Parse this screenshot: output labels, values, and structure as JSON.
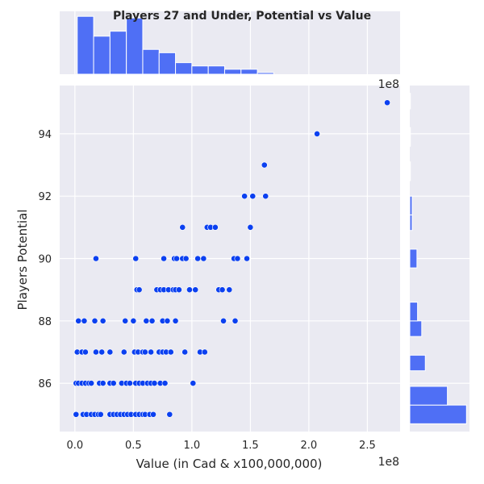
{
  "chart_data": {
    "type": "scatter",
    "title": "Players 27 and Under, Potential vs Value",
    "xlabel": "Value (in Cad & x100,000,000)",
    "ylabel": "Players Potential",
    "x_offset_label": "1e8",
    "x_ticks": [
      "0.0",
      "0.5",
      "1.0",
      "1.5",
      "2.0",
      "2.5"
    ],
    "y_ticks": [
      "86",
      "88",
      "90",
      "92",
      "94"
    ],
    "xlim": [
      -0.13,
      2.78
    ],
    "ylim": [
      84.45,
      95.55
    ],
    "grid": true,
    "point_color": "#0b40f0",
    "bar_color": "#4f6ff5",
    "background_color": "#eaeaf2",
    "points": [
      [
        2.67,
        95
      ],
      [
        2.07,
        94
      ],
      [
        1.62,
        93
      ],
      [
        1.45,
        92
      ],
      [
        1.52,
        92
      ],
      [
        1.63,
        92
      ],
      [
        0.92,
        91
      ],
      [
        1.13,
        91
      ],
      [
        1.16,
        91
      ],
      [
        1.2,
        91
      ],
      [
        1.5,
        91
      ],
      [
        0.18,
        90
      ],
      [
        0.52,
        90
      ],
      [
        0.76,
        90
      ],
      [
        0.85,
        90
      ],
      [
        0.87,
        90
      ],
      [
        0.92,
        90
      ],
      [
        0.95,
        90
      ],
      [
        1.05,
        90
      ],
      [
        1.1,
        90
      ],
      [
        1.36,
        90
      ],
      [
        1.39,
        90
      ],
      [
        1.47,
        90
      ],
      [
        0.53,
        89
      ],
      [
        0.55,
        89
      ],
      [
        0.7,
        89
      ],
      [
        0.73,
        89
      ],
      [
        0.76,
        89
      ],
      [
        0.8,
        89
      ],
      [
        0.84,
        89
      ],
      [
        0.86,
        89
      ],
      [
        0.89,
        89
      ],
      [
        0.98,
        89
      ],
      [
        1.03,
        89
      ],
      [
        1.23,
        89
      ],
      [
        1.26,
        89
      ],
      [
        1.32,
        89
      ],
      [
        0.03,
        88
      ],
      [
        0.08,
        88
      ],
      [
        0.17,
        88
      ],
      [
        0.24,
        88
      ],
      [
        0.43,
        88
      ],
      [
        0.5,
        88
      ],
      [
        0.61,
        88
      ],
      [
        0.66,
        88
      ],
      [
        0.75,
        88
      ],
      [
        0.79,
        88
      ],
      [
        0.86,
        88
      ],
      [
        1.27,
        88
      ],
      [
        1.37,
        88
      ],
      [
        0.02,
        87
      ],
      [
        0.06,
        87
      ],
      [
        0.09,
        87
      ],
      [
        0.18,
        87
      ],
      [
        0.23,
        87
      ],
      [
        0.3,
        87
      ],
      [
        0.42,
        87
      ],
      [
        0.51,
        87
      ],
      [
        0.54,
        87
      ],
      [
        0.58,
        87
      ],
      [
        0.6,
        87
      ],
      [
        0.65,
        87
      ],
      [
        0.72,
        87
      ],
      [
        0.75,
        87
      ],
      [
        0.78,
        87
      ],
      [
        0.82,
        87
      ],
      [
        0.94,
        87
      ],
      [
        1.07,
        87
      ],
      [
        1.11,
        87
      ],
      [
        0.01,
        86
      ],
      [
        0.03,
        86
      ],
      [
        0.06,
        86
      ],
      [
        0.09,
        86
      ],
      [
        0.12,
        86
      ],
      [
        0.14,
        86
      ],
      [
        0.21,
        86
      ],
      [
        0.24,
        86
      ],
      [
        0.3,
        86
      ],
      [
        0.33,
        86
      ],
      [
        0.4,
        86
      ],
      [
        0.44,
        86
      ],
      [
        0.47,
        86
      ],
      [
        0.52,
        86
      ],
      [
        0.55,
        86
      ],
      [
        0.58,
        86
      ],
      [
        0.62,
        86
      ],
      [
        0.65,
        86
      ],
      [
        0.68,
        86
      ],
      [
        0.73,
        86
      ],
      [
        0.77,
        86
      ],
      [
        1.01,
        86
      ],
      [
        0.01,
        85
      ],
      [
        0.07,
        85
      ],
      [
        0.1,
        85
      ],
      [
        0.14,
        85
      ],
      [
        0.17,
        85
      ],
      [
        0.2,
        85
      ],
      [
        0.22,
        85
      ],
      [
        0.3,
        85
      ],
      [
        0.33,
        85
      ],
      [
        0.36,
        85
      ],
      [
        0.39,
        85
      ],
      [
        0.42,
        85
      ],
      [
        0.45,
        85
      ],
      [
        0.48,
        85
      ],
      [
        0.52,
        85
      ],
      [
        0.55,
        85
      ],
      [
        0.58,
        85
      ],
      [
        0.6,
        85
      ],
      [
        0.64,
        85
      ],
      [
        0.67,
        85
      ],
      [
        0.81,
        85
      ]
    ],
    "x_hist": {
      "bin_start": 0.02,
      "bin_width": 0.14,
      "max_count": 35,
      "counts": [
        35,
        23,
        26,
        34,
        15,
        13,
        7,
        5,
        5,
        3,
        3,
        1,
        0,
        0,
        0,
        0,
        0,
        0,
        0
      ]
    },
    "y_hist": {
      "bars": [
        {
          "y0": 84.7,
          "y1": 85.3,
          "count": 95
        },
        {
          "y0": 85.3,
          "y1": 85.9,
          "count": 63
        },
        {
          "y0": 86.4,
          "y1": 86.9,
          "count": 26
        },
        {
          "y0": 87.5,
          "y1": 88.0,
          "count": 20
        },
        {
          "y0": 88.0,
          "y1": 88.6,
          "count": 13
        },
        {
          "y0": 89.7,
          "y1": 90.3,
          "count": 12
        },
        {
          "y0": 90.9,
          "y1": 91.4,
          "count": 4
        },
        {
          "y0": 91.4,
          "y1": 92.0,
          "count": 4
        },
        {
          "y0": 92.5,
          "y1": 93.1,
          "count": 1
        },
        {
          "y0": 93.6,
          "y1": 94.2,
          "count": 1
        },
        {
          "y0": 94.8,
          "y1": 95.3,
          "count": 1
        }
      ],
      "max_count": 95
    }
  }
}
